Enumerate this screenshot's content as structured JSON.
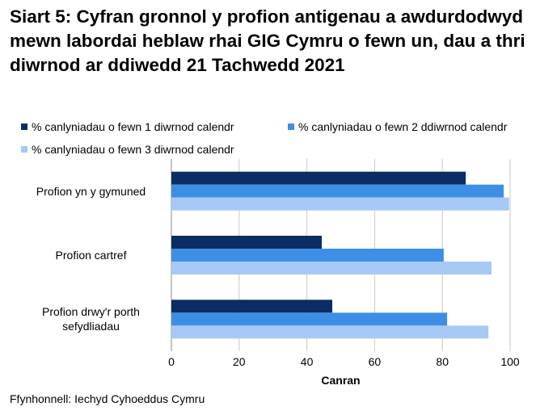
{
  "chart_data": {
    "type": "barh",
    "title": "Siart 5: Cyfran gronnol y profion antigenau a awdurdodwyd mewn labordai heblaw rhai GIG Cymru o fewn un, dau a thri diwrnod ar ddiwedd 21 Tachwedd 2021",
    "categories": [
      "Profion yn y gymuned",
      "Profion cartref",
      "Profion drwy'r porth sefydliadau"
    ],
    "series": [
      {
        "name": "% canlyniadau o fewn 1 diwrnod calendr",
        "color": "#0b2d63",
        "values": [
          86.9,
          44.4,
          47.5
        ]
      },
      {
        "name": "% canlyniadau o fewn 2 ddiwrnod calendr",
        "color": "#3f8ee6",
        "values": [
          98.1,
          80.4,
          81.4
        ]
      },
      {
        "name": "% canlyniadau o fewn 3 diwrnod calendr",
        "color": "#a6c9f5",
        "values": [
          99.7,
          94.5,
          93.6
        ]
      }
    ],
    "xlabel": "Canran",
    "xlim": [
      0,
      100
    ],
    "xticks": [
      0,
      20,
      40,
      60,
      80,
      100
    ],
    "grid": true,
    "source": "Ffynhonnell: Iechyd Cyhoeddus Cymru"
  }
}
